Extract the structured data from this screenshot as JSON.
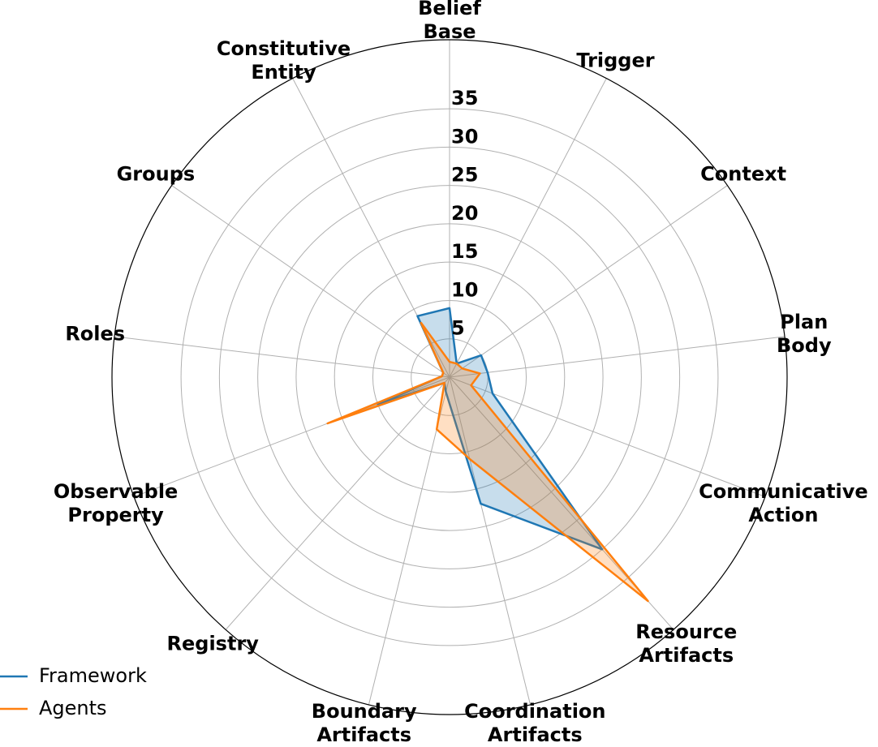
{
  "chart_data": {
    "type": "radar",
    "categories": [
      "Belief Base",
      "Trigger",
      "Context",
      "Plan Body",
      "Communicative Action",
      "Resource Artifacts",
      "Coordination Artifacts",
      "Boundary Artifacts",
      "Registry",
      "Observable Property",
      "Roles",
      "Groups",
      "Constitutive Entity"
    ],
    "series": [
      {
        "name": "Framework",
        "color": "#1f77b4",
        "values": [
          9,
          2,
          5,
          5,
          6,
          30,
          17,
          2,
          1,
          10,
          1,
          1,
          9
        ]
      },
      {
        "name": "Agents",
        "color": "#ff7f0e",
        "values": [
          2,
          2,
          2,
          4,
          3,
          39,
          11,
          7,
          1,
          17,
          1,
          1,
          8
        ]
      }
    ],
    "ylim": [
      0,
      44
    ],
    "yticks": [
      5,
      10,
      15,
      20,
      25,
      30,
      35
    ],
    "grid": true,
    "legend": "lower left"
  }
}
